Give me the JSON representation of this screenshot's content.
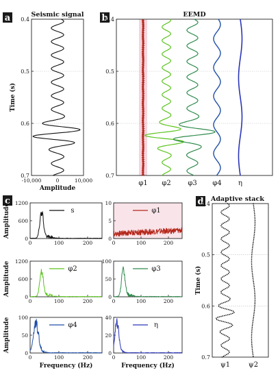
{
  "panels": {
    "a": {
      "letter": "a",
      "title": "Seismic signal"
    },
    "b": {
      "letter": "b",
      "title": "EEMD"
    },
    "c": {
      "letter": "c"
    },
    "d": {
      "letter": "d",
      "title": "Adaptive stack"
    }
  },
  "colors": {
    "signal": "#111111",
    "phi1": "#b5271b",
    "phi1_band": "#f3c9d4",
    "phi2": "#5ac41c",
    "phi3": "#2f8a4c",
    "phi4": "#1f4fa8",
    "eta": "#2a35b8",
    "grid": "#bdbdbd",
    "letter_bg": "#1a1a1a"
  },
  "chart_data": [
    {
      "id": "a",
      "type": "line",
      "title": "Seismic signal",
      "xlabel": "Amplitude",
      "ylabel": "Time (s)",
      "xlim": [
        -10000,
        10000
      ],
      "ylim": [
        0.4,
        0.7
      ],
      "xticks": [
        "-10,000",
        "0",
        "10,000"
      ],
      "yticks": [
        "0.4",
        "0.5",
        "0.6",
        "0.7"
      ],
      "grid": true
    },
    {
      "id": "b",
      "type": "line",
      "title": "EEMD",
      "ylim": [
        0.4,
        0.7
      ],
      "yticks": [
        "0.4",
        "0.5",
        "0.6",
        "0.7"
      ],
      "series": [
        {
          "name": "φ1"
        },
        {
          "name": "φ2"
        },
        {
          "name": "φ3"
        },
        {
          "name": "φ4"
        },
        {
          "name": "η"
        }
      ],
      "grid": true
    },
    {
      "id": "c-s",
      "type": "line",
      "legend": "s",
      "ylabel": "Amplitude",
      "xlim": [
        0,
        250
      ],
      "ylim": [
        0,
        1200
      ],
      "yticks": [
        "0",
        "600",
        "1200"
      ],
      "xticks": [
        "0",
        "100",
        "200"
      ],
      "peak_freq": 40,
      "peak_amp": 1000
    },
    {
      "id": "c-phi1",
      "type": "line",
      "legend": "φ1",
      "xlim": [
        0,
        250
      ],
      "ylim": [
        0,
        10
      ],
      "yticks": [
        "0",
        "5",
        "10"
      ],
      "xticks": [
        "0",
        "100",
        "200"
      ],
      "level_amp": 1.5
    },
    {
      "id": "c-phi2",
      "type": "line",
      "legend": "φ2",
      "ylabel": "Amplitude",
      "xlim": [
        0,
        250
      ],
      "ylim": [
        0,
        1200
      ],
      "yticks": [
        "0",
        "600",
        "1200"
      ],
      "xticks": [
        "0",
        "100",
        "200"
      ],
      "peak_freq": 40,
      "peak_amp": 950
    },
    {
      "id": "c-phi3",
      "type": "line",
      "legend": "φ3",
      "xlim": [
        0,
        250
      ],
      "ylim": [
        0,
        100
      ],
      "yticks": [
        "0",
        "50",
        "100"
      ],
      "xticks": [
        "0",
        "100",
        "200"
      ],
      "peak_freq": 35,
      "peak_amp": 85
    },
    {
      "id": "c-phi4",
      "type": "line",
      "legend": "φ4",
      "ylabel": "Amplitude",
      "xlabel": "Frequency (Hz)",
      "xlim": [
        0,
        250
      ],
      "ylim": [
        0,
        100
      ],
      "yticks": [
        "0",
        "50",
        "100"
      ],
      "xticks": [
        "0",
        "100",
        "200"
      ],
      "peak_freq": 20,
      "peak_amp": 90
    },
    {
      "id": "c-eta",
      "type": "line",
      "legend": "η",
      "xlabel": "Frequency (Hz)",
      "xlim": [
        0,
        250
      ],
      "ylim": [
        0,
        40
      ],
      "yticks": [
        "0",
        "20",
        "40"
      ],
      "xticks": [
        "0",
        "100",
        "200"
      ],
      "peak_freq": 12,
      "peak_amp": 37
    },
    {
      "id": "d",
      "type": "line",
      "title": "Adaptive stack",
      "ylabel": "Time (s)",
      "ylim": [
        0.4,
        0.7
      ],
      "yticks": [
        "0.4",
        "0.5",
        "0.6",
        "0.7"
      ],
      "series": [
        {
          "name": "ψ1"
        },
        {
          "name": "ψ2"
        }
      ],
      "grid": true
    }
  ]
}
